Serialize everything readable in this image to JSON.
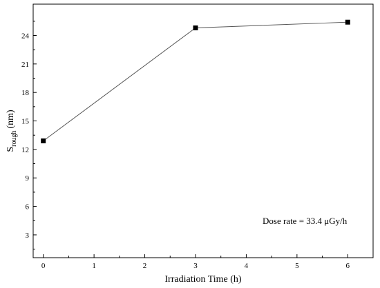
{
  "chart_data": {
    "type": "line",
    "x": [
      0,
      3,
      6
    ],
    "series": [
      {
        "values": [
          12.9,
          24.8,
          25.4
        ],
        "marker": "square",
        "color": "#000000"
      }
    ],
    "xlabel": "Irradiation Time (h)",
    "ylabel": {
      "main": "S",
      "subscript": "rough",
      "unit": "(nm)"
    },
    "xticks": [
      0,
      1,
      2,
      3,
      4,
      5,
      6
    ],
    "yticks": [
      3,
      6,
      9,
      12,
      15,
      18,
      21,
      24
    ],
    "xlim": [
      -0.2,
      6.5
    ],
    "ylim": [
      0.6,
      27.3
    ],
    "grid": false,
    "annotation": "Dose rate = 33.4 μGy/h"
  }
}
